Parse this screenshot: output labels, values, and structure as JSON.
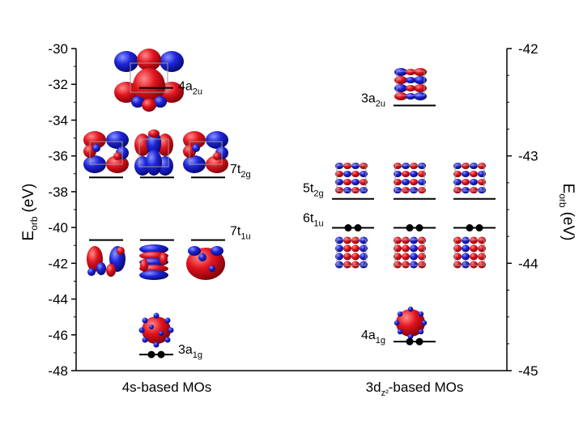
{
  "left_axis": {
    "title_main": "E",
    "title_sub": "orb",
    "title_unit": "(eV)",
    "min": -48,
    "max": -30,
    "ticks": [
      "-30",
      "-32",
      "-34",
      "-36",
      "-38",
      "-40",
      "-42",
      "-44",
      "-46",
      "-48"
    ]
  },
  "right_axis": {
    "title_main": "E",
    "title_sub": "orb",
    "title_unit": "(eV)",
    "min": -45,
    "max": -42,
    "ticks": [
      "-42",
      "-43",
      "-44",
      "-45"
    ]
  },
  "categories": {
    "left": {
      "main": "4s-based MOs",
      "sub": "",
      "rest": ""
    },
    "right": {
      "main": "3d",
      "sub": "z²",
      "rest": "-based MOs"
    }
  },
  "left_levels": [
    {
      "main": "4a",
      "sub": "2u",
      "energy": -32.2,
      "count": 1,
      "electrons": 0
    },
    {
      "main": "7t",
      "sub": "2g",
      "energy": -37.2,
      "count": 3,
      "electrons": 0
    },
    {
      "main": "7t",
      "sub": "1u",
      "energy": -40.7,
      "count": 3,
      "electrons": 0
    },
    {
      "main": "3a",
      "sub": "1g",
      "energy": -47.1,
      "count": 1,
      "electrons": 2
    }
  ],
  "right_levels": [
    {
      "main": "3a",
      "sub": "2u",
      "energy": -42.53,
      "count": 1,
      "electrons": 0
    },
    {
      "main": "5t",
      "sub": "2g",
      "energy": -43.4,
      "count": 3,
      "electrons": 0
    },
    {
      "main": "6t",
      "sub": "1u",
      "energy": -43.67,
      "count": 3,
      "electrons": 2
    },
    {
      "main": "4a",
      "sub": "1g",
      "energy": -44.73,
      "count": 1,
      "electrons": 2
    }
  ],
  "colors": {
    "lobe_red": "#e0141e",
    "lobe_blue": "#1e24d8",
    "axis": "#000000"
  }
}
